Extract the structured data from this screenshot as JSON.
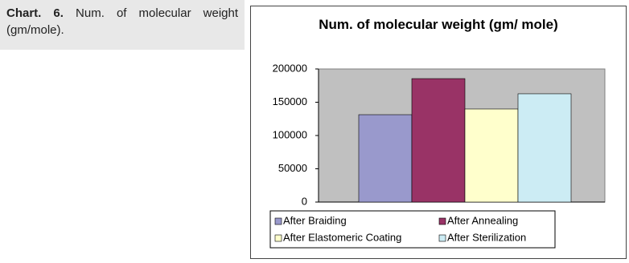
{
  "caption": {
    "label": "Chart. 6.",
    "text": "Num. of molecular weight (gm/mole)."
  },
  "chart_data": {
    "type": "bar",
    "title": "Num. of molecular weight (gm/ mole)",
    "series": [
      {
        "name": "After Braiding",
        "color": "#9999cc",
        "values": [
          131300
        ]
      },
      {
        "name": "After Annealing",
        "color": "#993366",
        "values": [
          185500
        ]
      },
      {
        "name": "After Elastomeric Coating",
        "color": "#ffffcc",
        "values": [
          139800
        ]
      },
      {
        "name": "After Sterilization",
        "color": "#ccecf4",
        "values": [
          162700
        ]
      }
    ],
    "ylim": [
      0,
      200000
    ],
    "yticks": [
      0,
      50000,
      100000,
      150000,
      200000
    ],
    "grid": false,
    "legend": "bottom"
  }
}
